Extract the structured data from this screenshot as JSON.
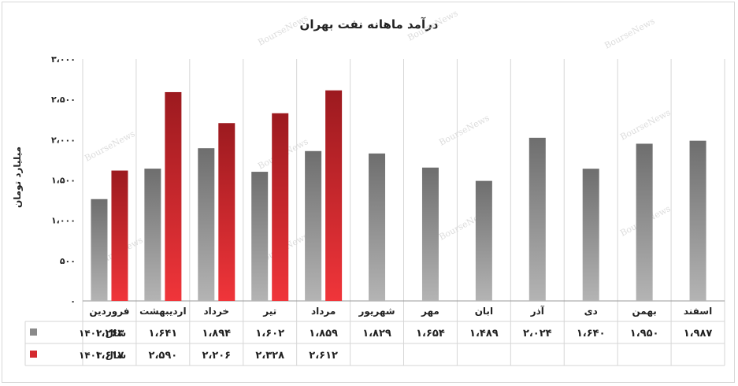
{
  "chart_data": {
    "type": "bar",
    "title": "درآمد ماهانه نفت بهران",
    "ylabel": "میلیارد تومان",
    "ylim": [
      0,
      3000
    ],
    "yticks": [
      0,
      500,
      1000,
      1500,
      2000,
      2500,
      3000
    ],
    "ytick_labels": [
      "۰",
      "۵۰۰",
      "۱،۰۰۰",
      "۱،۵۰۰",
      "۲،۰۰۰",
      "۲،۵۰۰",
      "۳،۰۰۰"
    ],
    "grid": "vertical-category-lines",
    "legend": "table-left",
    "categories": [
      "فروردین",
      "اردیبهشت",
      "خرداد",
      "تیر",
      "مرداد",
      "شهریور",
      "مهر",
      "ابان",
      "آذر",
      "دی",
      "بهمن",
      "اسفند"
    ],
    "series": [
      {
        "name": "سال ۱۴۰۲",
        "color": "#8a8a8a",
        "values": [
          1263,
          1641,
          1894,
          1602,
          1859,
          1829,
          1654,
          1489,
          2024,
          1640,
          1950,
          1987
        ],
        "labels": [
          "۱،۲۶۳",
          "۱،۶۴۱",
          "۱،۸۹۴",
          "۱،۶۰۲",
          "۱،۸۵۹",
          "۱،۸۲۹",
          "۱،۶۵۴",
          "۱،۴۸۹",
          "۲،۰۲۴",
          "۱،۶۴۰",
          "۱،۹۵۰",
          "۱،۹۸۷"
        ]
      },
      {
        "name": "سال ۱۴۰۳",
        "color": "#d42a2f",
        "values": [
          1617,
          2590,
          2206,
          2328,
          2612,
          null,
          null,
          null,
          null,
          null,
          null,
          null
        ],
        "labels": [
          "۱،۶۱۷",
          "۲،۵۹۰",
          "۲،۲۰۶",
          "۲،۳۲۸",
          "۲،۶۱۲",
          "",
          "",
          "",
          "",
          "",
          "",
          ""
        ]
      }
    ]
  },
  "watermark": "BourseNews"
}
